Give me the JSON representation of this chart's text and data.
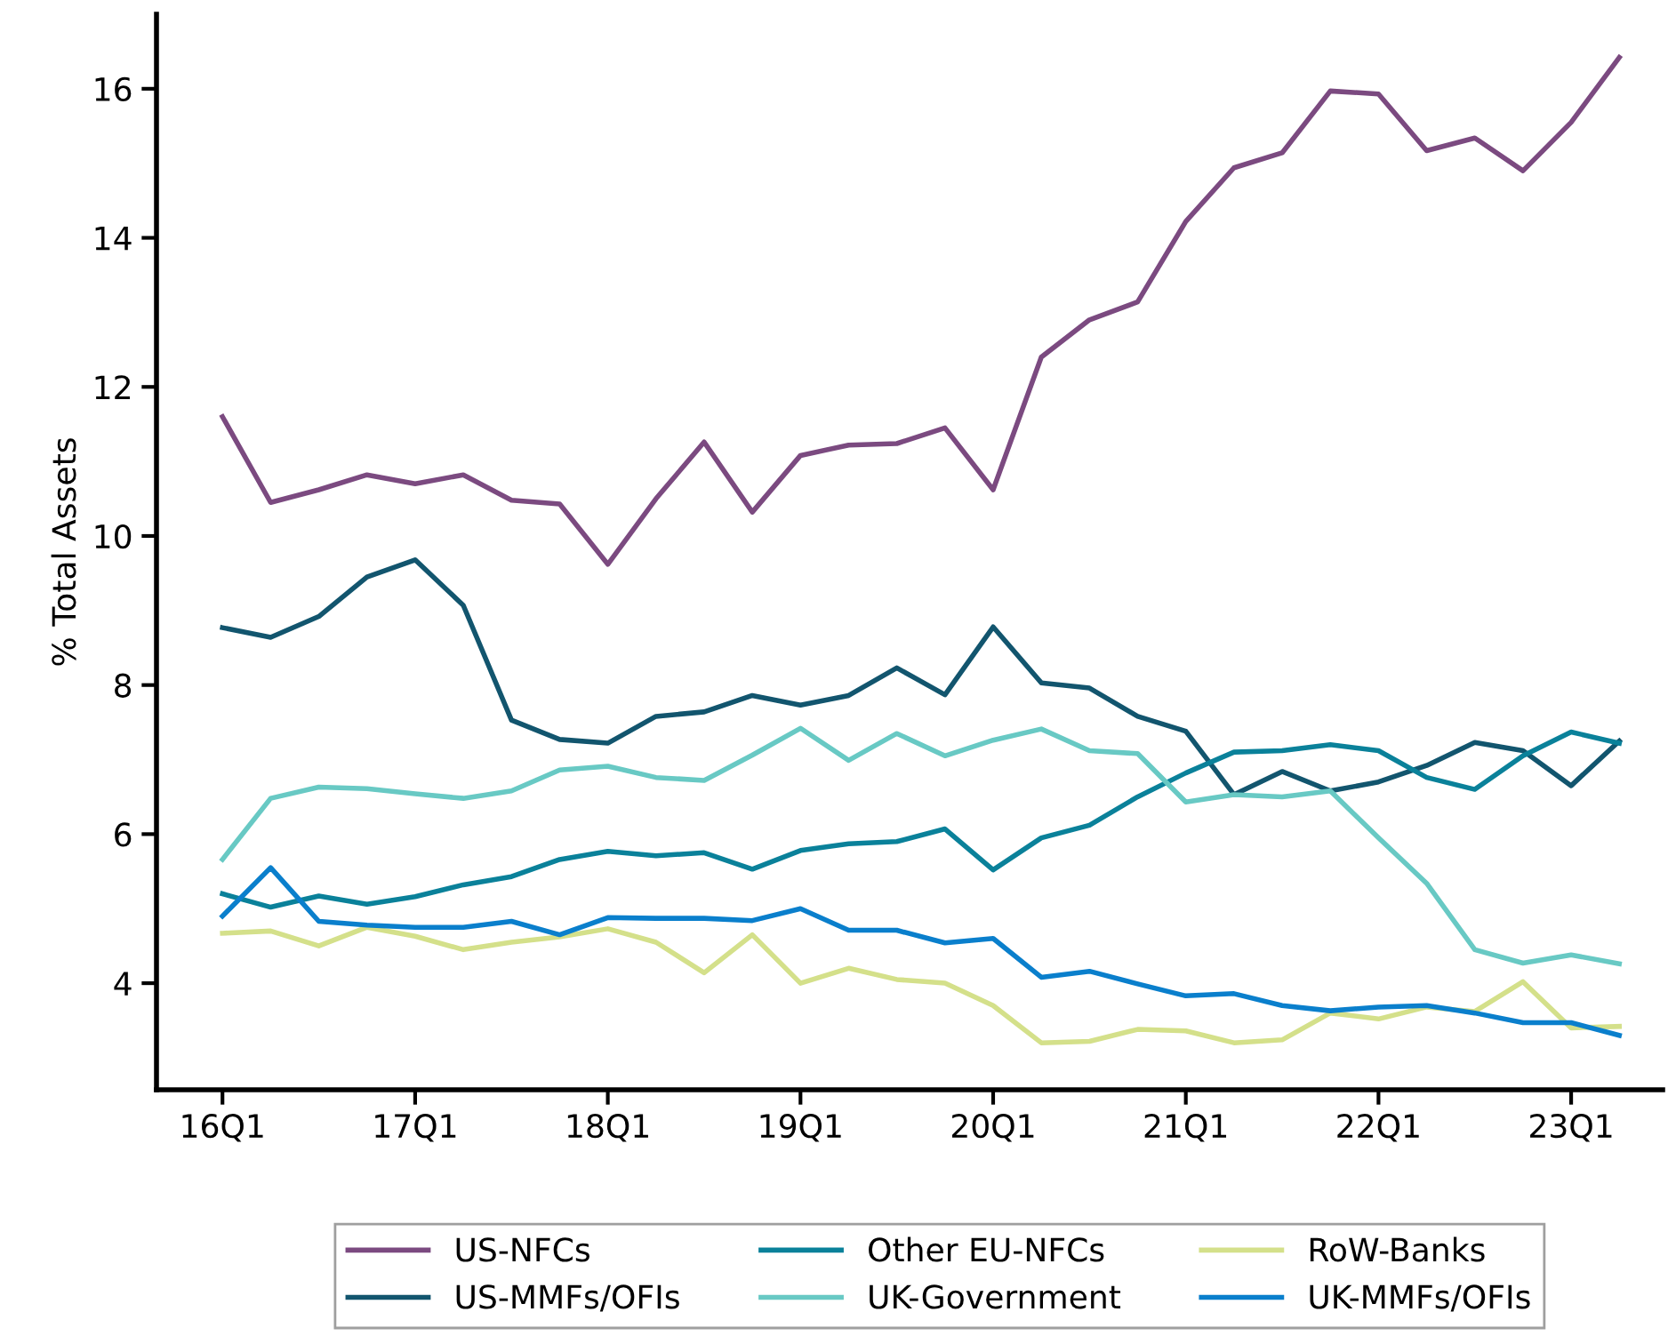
{
  "chart_data": {
    "type": "line",
    "ylabel": "% Total Assets",
    "categories": [
      "16Q1",
      null,
      null,
      null,
      "17Q1",
      null,
      null,
      null,
      "18Q1",
      null,
      null,
      null,
      "19Q1",
      null,
      null,
      null,
      "20Q1",
      null,
      null,
      null,
      "21Q1",
      null,
      null,
      null,
      "22Q1",
      null,
      null,
      null,
      "23Q1",
      null
    ],
    "ylim": [
      2.57,
      17.0
    ],
    "yticks": [
      4,
      6,
      8,
      10,
      12,
      14,
      16
    ],
    "grid": false,
    "legend": "bottom",
    "marker": "none",
    "line_style": "solid",
    "series": [
      {
        "name": "US-NFCs",
        "color": "#7b4a80",
        "values": [
          11.6,
          10.45,
          10.62,
          10.82,
          10.7,
          10.82,
          10.48,
          10.43,
          9.62,
          10.5,
          11.26,
          10.32,
          11.08,
          11.22,
          11.24,
          11.45,
          10.62,
          12.4,
          12.9,
          13.14,
          14.22,
          14.94,
          15.14,
          15.97,
          15.93,
          15.17,
          15.34,
          14.9,
          15.55,
          16.42
        ]
      },
      {
        "name": "US-MMFs/OFIs",
        "color": "#12556e",
        "values": [
          8.77,
          8.64,
          8.92,
          9.45,
          9.68,
          9.07,
          7.53,
          7.27,
          7.22,
          7.58,
          7.64,
          7.86,
          7.73,
          7.86,
          8.23,
          7.87,
          8.78,
          8.03,
          7.96,
          7.58,
          7.38,
          6.53,
          6.84,
          6.58,
          6.7,
          6.92,
          7.23,
          7.12,
          6.65,
          7.25
        ]
      },
      {
        "name": "Other EU-NFCs",
        "color": "#0a819a",
        "values": [
          5.2,
          5.02,
          5.17,
          5.06,
          5.16,
          5.32,
          5.43,
          5.66,
          5.77,
          5.71,
          5.75,
          5.53,
          5.78,
          5.87,
          5.9,
          6.07,
          5.52,
          5.95,
          6.12,
          6.5,
          6.82,
          7.1,
          7.12,
          7.2,
          7.12,
          6.76,
          6.6,
          7.05,
          7.37,
          7.22
        ]
      },
      {
        "name": "UK-Government",
        "color": "#68c9c4",
        "values": [
          5.66,
          6.48,
          6.63,
          6.61,
          6.54,
          6.48,
          6.58,
          6.86,
          6.91,
          6.76,
          6.72,
          7.06,
          7.42,
          6.99,
          7.35,
          7.05,
          7.26,
          7.41,
          7.12,
          7.08,
          6.43,
          6.53,
          6.5,
          6.58,
          5.95,
          5.34,
          4.45,
          4.27,
          4.38,
          4.26
        ]
      },
      {
        "name": "RoW-Banks",
        "color": "#d4e08a",
        "values": [
          4.67,
          4.7,
          4.5,
          4.75,
          4.63,
          4.45,
          4.55,
          4.62,
          4.73,
          4.55,
          4.14,
          4.65,
          4.0,
          4.2,
          4.05,
          4.0,
          3.7,
          3.2,
          3.22,
          3.38,
          3.36,
          3.2,
          3.24,
          3.6,
          3.52,
          3.68,
          3.62,
          4.02,
          3.4,
          3.42
        ]
      },
      {
        "name": "UK-MMFs/OFIs",
        "color": "#0a7fcc",
        "values": [
          4.9,
          5.55,
          4.83,
          4.78,
          4.75,
          4.75,
          4.83,
          4.65,
          4.88,
          4.87,
          4.87,
          4.84,
          5.0,
          4.71,
          4.71,
          4.54,
          4.6,
          4.08,
          4.16,
          3.99,
          3.83,
          3.86,
          3.7,
          3.63,
          3.68,
          3.7,
          3.6,
          3.47,
          3.47,
          3.3
        ]
      }
    ]
  }
}
